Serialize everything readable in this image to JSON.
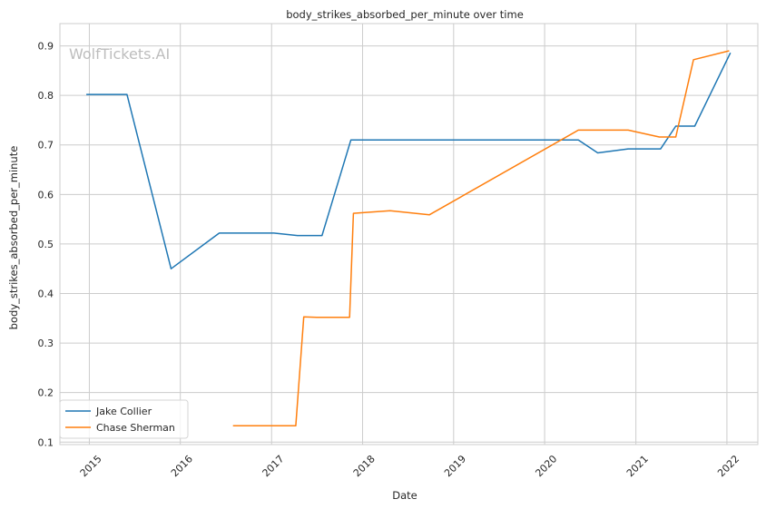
{
  "chart_data": {
    "type": "line",
    "title": "body_strikes_absorbed_per_minute over time",
    "xlabel": "Date",
    "ylabel": "body_strikes_absorbed_per_minute",
    "watermark": "WolfTickets.AI",
    "x_ticks": [
      "2015",
      "2016",
      "2017",
      "2018",
      "2019",
      "2020",
      "2021",
      "2022"
    ],
    "y_ticks": [
      "0.1",
      "0.2",
      "0.3",
      "0.4",
      "0.5",
      "0.6",
      "0.7",
      "0.8",
      "0.9"
    ],
    "ylim": [
      0.095,
      0.945
    ],
    "xlim": [
      "2014-09-05",
      "2022-05-05"
    ],
    "grid": true,
    "legend": "lower-left",
    "series": [
      {
        "name": "Jake Collier",
        "color": "#1f77b4",
        "points": [
          [
            "2014-12-20",
            0.802
          ],
          [
            "2015-06-01",
            0.802
          ],
          [
            "2015-11-25",
            0.45
          ],
          [
            "2016-06-05",
            0.522
          ],
          [
            "2017-01-10",
            0.522
          ],
          [
            "2017-04-15",
            0.517
          ],
          [
            "2017-07-22",
            0.517
          ],
          [
            "2017-11-15",
            0.71
          ],
          [
            "2020-05-15",
            0.71
          ],
          [
            "2020-08-01",
            0.684
          ],
          [
            "2020-12-01",
            0.692
          ],
          [
            "2021-04-10",
            0.692
          ],
          [
            "2021-06-10",
            0.738
          ],
          [
            "2021-08-25",
            0.738
          ],
          [
            "2022-01-15",
            0.886
          ]
        ]
      },
      {
        "name": "Chase Sherman",
        "color": "#ff7f0e",
        "points": [
          [
            "2016-07-30",
            0.133
          ],
          [
            "2017-04-08",
            0.133
          ],
          [
            "2017-05-10",
            0.353
          ],
          [
            "2017-07-01",
            0.352
          ],
          [
            "2017-11-10",
            0.352
          ],
          [
            "2017-11-25",
            0.562
          ],
          [
            "2018-04-21",
            0.567
          ],
          [
            "2018-09-26",
            0.559
          ],
          [
            "2020-05-15",
            0.73
          ],
          [
            "2020-12-01",
            0.73
          ],
          [
            "2021-04-05",
            0.716
          ],
          [
            "2021-06-10",
            0.716
          ],
          [
            "2021-08-20",
            0.872
          ],
          [
            "2022-01-10",
            0.89
          ]
        ]
      }
    ]
  }
}
